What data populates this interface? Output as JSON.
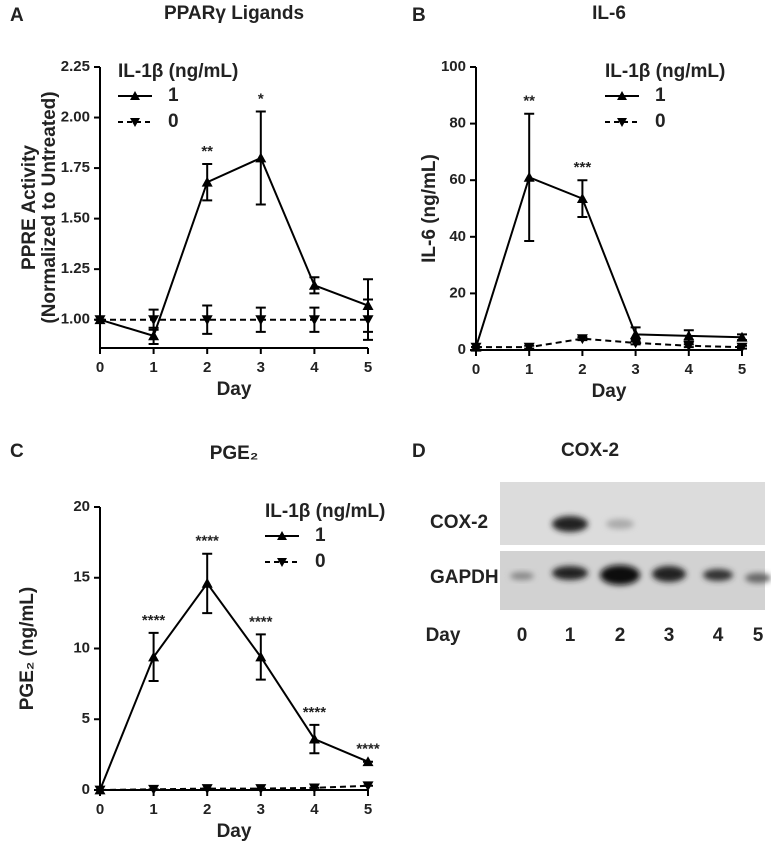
{
  "chart_data": [
    {
      "type": "line",
      "panel": "A",
      "title": "PPARγ Ligands",
      "ylabel": [
        "PPRE Activity",
        "(Normalized to Untreated)"
      ],
      "xlabel": "Day",
      "x": [
        0,
        1,
        2,
        3,
        4,
        5
      ],
      "xlim": [
        0,
        5
      ],
      "xticks": [
        0,
        1,
        2,
        3,
        4,
        5
      ],
      "ylim": [
        0.86,
        2.25
      ],
      "yticks": [
        {
          "value": 1,
          "label": "1.00"
        },
        {
          "value": 1.25,
          "label": "1.25"
        },
        {
          "value": 1.5,
          "label": "1.50"
        },
        {
          "value": 1.75,
          "label": "1.75"
        },
        {
          "value": 2,
          "label": "2.00"
        },
        {
          "value": 2.25,
          "label": "2.25"
        }
      ],
      "legend_title": "IL-1β (ng/mL)",
      "series": [
        {
          "name": "1",
          "color": "#000000",
          "marker": "triangle-up",
          "dashed": false,
          "values": [
            1.0,
            0.92,
            1.68,
            1.8,
            1.17,
            1.07
          ],
          "errors": [
            0,
            0.04,
            0.09,
            0.23,
            0.04,
            0.13
          ],
          "annotations": [
            null,
            null,
            "**",
            "*",
            null,
            null
          ]
        },
        {
          "name": "0",
          "color": "#000000",
          "marker": "triangle-down",
          "dashed": true,
          "values": [
            1.0,
            1.0,
            1.0,
            1.0,
            1.0,
            1.0
          ],
          "errors": [
            0,
            0.05,
            0.07,
            0.06,
            0.06,
            0.1
          ]
        }
      ]
    },
    {
      "type": "line",
      "panel": "B",
      "title": "IL-6",
      "ylabel": [
        "IL-6 (ng/mL)"
      ],
      "xlabel": "Day",
      "x": [
        0,
        1,
        2,
        3,
        4,
        5
      ],
      "xlim": [
        0,
        5
      ],
      "xticks": [
        0,
        1,
        2,
        3,
        4,
        5
      ],
      "ylim": [
        0,
        100
      ],
      "yticks": [
        0,
        20,
        40,
        60,
        80,
        100
      ],
      "legend_title": "IL-1β (ng/mL)",
      "series": [
        {
          "name": "1",
          "color": "#000000",
          "marker": "triangle-up",
          "dashed": false,
          "values": [
            1,
            61,
            53.5,
            5.5,
            5,
            4.5
          ],
          "errors": [
            0,
            22.5,
            6.5,
            2.5,
            2,
            1
          ],
          "annotations": [
            null,
            "**",
            "***",
            null,
            null,
            null
          ]
        },
        {
          "name": "0",
          "color": "#000000",
          "marker": "triangle-down",
          "dashed": true,
          "values": [
            1,
            1,
            4,
            2.5,
            1.5,
            1
          ],
          "errors": [
            0,
            0.5,
            0.5,
            0.5,
            0.5,
            0.5
          ]
        }
      ]
    },
    {
      "type": "line",
      "panel": "C",
      "title": "PGE₂",
      "ylabel": [
        "PGE₂ (ng/mL)"
      ],
      "xlabel": "Day",
      "x": [
        0,
        1,
        2,
        3,
        4,
        5
      ],
      "xlim": [
        0,
        5
      ],
      "xticks": [
        0,
        1,
        2,
        3,
        4,
        5
      ],
      "ylim": [
        0,
        20
      ],
      "yticks": [
        0,
        5,
        10,
        15,
        20
      ],
      "legend_title": "IL-1β (ng/mL)",
      "series": [
        {
          "name": "1",
          "color": "#000000",
          "marker": "triangle-up",
          "dashed": false,
          "values": [
            0,
            9.4,
            14.6,
            9.4,
            3.6,
            2.0
          ],
          "errors": [
            0,
            1.7,
            2.1,
            1.6,
            1.0,
            0
          ],
          "annotations": [
            null,
            "****",
            "****",
            "****",
            "****",
            "****"
          ]
        },
        {
          "name": "0",
          "color": "#000000",
          "marker": "triangle-down",
          "dashed": true,
          "values": [
            0,
            0.05,
            0.1,
            0.1,
            0.15,
            0.3
          ],
          "errors": [
            0,
            0,
            0,
            0,
            0,
            0
          ]
        }
      ]
    },
    {
      "type": "blot",
      "panel": "D",
      "title": "COX-2",
      "rows": [
        "COX-2",
        "GAPDH"
      ],
      "xlabel": "Day",
      "categories": [
        "0",
        "1",
        "2",
        "3",
        "4",
        "5"
      ]
    }
  ]
}
